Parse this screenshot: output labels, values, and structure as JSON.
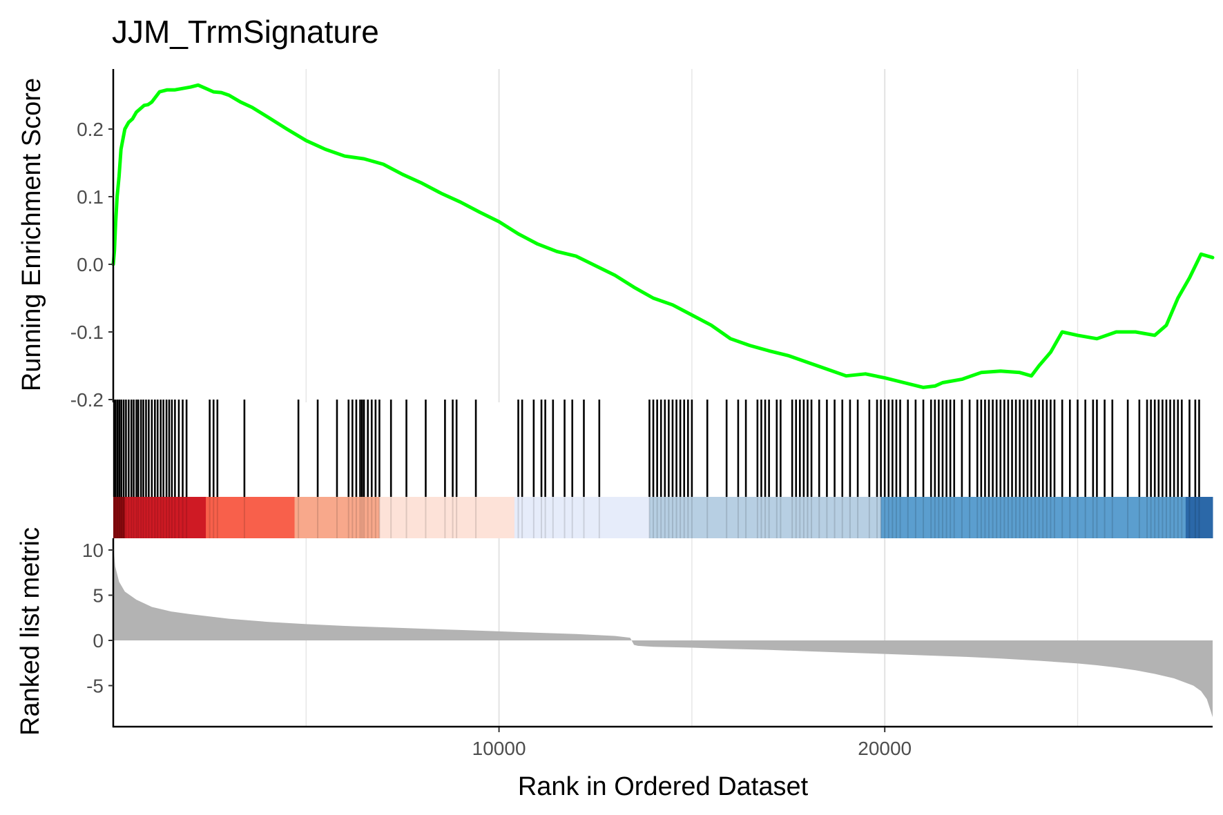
{
  "chart_data": {
    "type": "line",
    "title": "JJM_TrmSignature",
    "xlabel": "Rank in Ordered Dataset",
    "xlim": [
      0,
      28500
    ],
    "x_ticks": [
      10000,
      20000
    ],
    "x_tick_labels": [
      "10000",
      "20000"
    ],
    "grid": "vertical major and minor lines only",
    "panels": [
      {
        "name": "running-enrichment",
        "ylabel": "Running Enrichment Score",
        "ylim": [
          -0.2,
          0.27
        ],
        "y_ticks": [
          0.2,
          0.1,
          0.0,
          -0.1,
          -0.2
        ],
        "y_tick_labels": [
          "0.2",
          "0.1",
          "0.0",
          "-0.1",
          "-0.2"
        ],
        "line_color": "#00ff00",
        "series": [
          {
            "x": [
              0,
              30,
              60,
              100,
              150,
              200,
              300,
              400,
              500,
              600,
              700,
              800,
              900,
              1000,
              1200,
              1400,
              1600,
              1800,
              2000,
              2200,
              2400,
              2600,
              2800,
              3000,
              3300,
              3600,
              4000,
              4500,
              5000,
              5500,
              6000,
              6500,
              7000,
              7500,
              8000,
              8500,
              9000,
              9500,
              10000,
              10500,
              11000,
              11500,
              12000,
              12500,
              13000,
              13500,
              14000,
              14500,
              15000,
              15500,
              16000,
              16500,
              17000,
              17500,
              18000,
              18500,
              19000,
              19500,
              20000,
              20500,
              21000,
              21300,
              21500,
              22000,
              22500,
              23000,
              23500,
              23800,
              24000,
              24300,
              24600,
              25000,
              25500,
              26000,
              26500,
              27000,
              27300,
              27600,
              27900,
              28200,
              28500
            ],
            "y": [
              0.0,
              0.02,
              0.06,
              0.1,
              0.13,
              0.17,
              0.2,
              0.21,
              0.215,
              0.225,
              0.23,
              0.235,
              0.236,
              0.24,
              0.255,
              0.258,
              0.258,
              0.26,
              0.262,
              0.265,
              0.26,
              0.255,
              0.254,
              0.25,
              0.24,
              0.232,
              0.218,
              0.2,
              0.183,
              0.17,
              0.16,
              0.156,
              0.148,
              0.133,
              0.12,
              0.105,
              0.092,
              0.077,
              0.063,
              0.045,
              0.03,
              0.019,
              0.012,
              -0.002,
              -0.016,
              -0.034,
              -0.05,
              -0.06,
              -0.075,
              -0.09,
              -0.11,
              -0.12,
              -0.128,
              -0.135,
              -0.145,
              -0.155,
              -0.165,
              -0.162,
              -0.168,
              -0.175,
              -0.182,
              -0.18,
              -0.175,
              -0.17,
              -0.16,
              -0.158,
              -0.16,
              -0.165,
              -0.15,
              -0.13,
              -0.1,
              -0.105,
              -0.11,
              -0.1,
              -0.1,
              -0.105,
              -0.09,
              -0.05,
              -0.02,
              0.015,
              0.01
            ]
          }
        ]
      },
      {
        "name": "hit-ticks",
        "type": "rug",
        "color": "#000000",
        "description_values": "gene set member ranks",
        "hits": [
          20,
          60,
          110,
          160,
          210,
          270,
          330,
          400,
          470,
          530,
          600,
          650,
          720,
          780,
          850,
          920,
          1000,
          1080,
          1150,
          1230,
          1300,
          1380,
          1450,
          1520,
          1600,
          1700,
          1800,
          1900,
          2500,
          2600,
          2700,
          3400,
          4800,
          5300,
          5800,
          6100,
          6200,
          6300,
          6400,
          6450,
          6500,
          6600,
          6700,
          6800,
          6900,
          7200,
          7600,
          8100,
          8600,
          8800,
          8900,
          9400,
          10500,
          10600,
          10900,
          11100,
          11200,
          11400,
          11700,
          11900,
          12200,
          12600,
          13900,
          14000,
          14100,
          14200,
          14300,
          14400,
          14500,
          14600,
          14700,
          14800,
          14900,
          15000,
          15400,
          15900,
          16200,
          16400,
          16700,
          16800,
          16900,
          17000,
          17200,
          17300,
          17600,
          17700,
          17800,
          17900,
          18000,
          18100,
          18300,
          18500,
          18700,
          18900,
          19100,
          19300,
          19600,
          19800,
          19900,
          20000,
          20100,
          20200,
          20300,
          20400,
          20600,
          20800,
          21000,
          21200,
          21300,
          21400,
          21500,
          21600,
          21700,
          21800,
          22000,
          22200,
          22400,
          22500,
          22600,
          22700,
          22800,
          22900,
          23000,
          23100,
          23200,
          23300,
          23400,
          23500,
          23600,
          23700,
          23800,
          23900,
          24000,
          24100,
          24200,
          24300,
          24400,
          24600,
          24800,
          25000,
          25200,
          25400,
          25500,
          25700,
          25900,
          26300,
          26600,
          26800,
          26900,
          27000,
          27100,
          27200,
          27300,
          27400,
          27500,
          27600,
          27700,
          27900,
          28050,
          28150
        ]
      },
      {
        "name": "color-strip",
        "type": "heatmap",
        "segments": [
          {
            "start": 0,
            "end": 300,
            "color": "#8b0a0e"
          },
          {
            "start": 300,
            "end": 2400,
            "color": "#cf1a24"
          },
          {
            "start": 2400,
            "end": 4700,
            "color": "#f8604b"
          },
          {
            "start": 4700,
            "end": 6900,
            "color": "#f8a88b"
          },
          {
            "start": 6900,
            "end": 10400,
            "color": "#fde2d8"
          },
          {
            "start": 10400,
            "end": 13900,
            "color": "#e6ecfa"
          },
          {
            "start": 13900,
            "end": 19900,
            "color": "#b7cfe3"
          },
          {
            "start": 19900,
            "end": 27800,
            "color": "#5b9ecf"
          },
          {
            "start": 27800,
            "end": 28500,
            "color": "#2b68a8"
          }
        ]
      },
      {
        "name": "ranked-metric",
        "type": "area",
        "ylabel": "Ranked list metric",
        "ylim": [
          -9.0,
          10.8
        ],
        "y_ticks": [
          10,
          5,
          0,
          -5
        ],
        "y_tick_labels": [
          "10",
          "5",
          "0",
          "-5"
        ],
        "fill_color": "#b3b3b3",
        "series": [
          {
            "x": [
              0,
              50,
              150,
              300,
              600,
              1000,
              1500,
              2000,
              3000,
              4000,
              5000,
              6000,
              7000,
              8000,
              9000,
              10000,
              11000,
              12000,
              13000,
              13400,
              13500,
              13600,
              14000,
              15000,
              16000,
              17000,
              18000,
              19000,
              20000,
              21000,
              22000,
              23000,
              24000,
              25000,
              25500,
              26000,
              26500,
              27000,
              27500,
              28000,
              28200,
              28350,
              28450,
              28500
            ],
            "y": [
              10.5,
              8.2,
              6.5,
              5.4,
              4.5,
              3.7,
              3.2,
              2.9,
              2.4,
              2.05,
              1.8,
              1.6,
              1.45,
              1.3,
              1.15,
              1.0,
              0.85,
              0.7,
              0.5,
              0.3,
              -0.5,
              -0.6,
              -0.7,
              -0.8,
              -0.95,
              -1.05,
              -1.2,
              -1.35,
              -1.5,
              -1.65,
              -1.8,
              -2.0,
              -2.25,
              -2.55,
              -2.75,
              -3.0,
              -3.3,
              -3.7,
              -4.2,
              -5.0,
              -5.6,
              -6.5,
              -7.8,
              -8.5
            ]
          }
        ]
      }
    ]
  }
}
